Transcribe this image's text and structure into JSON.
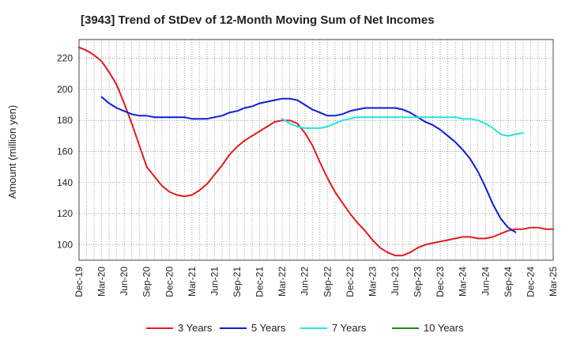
{
  "chart_data": {
    "type": "line",
    "title": "[3943]  Trend of StDev of 12-Month Moving Sum of Net Incomes",
    "xlabel": "",
    "ylabel": "Amount (million yen)",
    "ylim": [
      90,
      232
    ],
    "yticks": [
      100,
      120,
      140,
      160,
      180,
      200,
      220
    ],
    "grid": true,
    "legend_position": "bottom",
    "x_tick_labels": [
      "Dec-19",
      "Mar-20",
      "Jun-20",
      "Sep-20",
      "Dec-20",
      "Mar-21",
      "Jun-21",
      "Sep-21",
      "Dec-21",
      "Mar-22",
      "Jun-22",
      "Sep-22",
      "Dec-22",
      "Mar-23",
      "Jun-23",
      "Sep-23",
      "Dec-23",
      "Mar-24",
      "Jun-24",
      "Sep-24",
      "Dec-24",
      "Mar-25"
    ],
    "series": [
      {
        "name": "3 Years",
        "color": "#e31a1c",
        "start_index": 0,
        "values": [
          227,
          225,
          222,
          218,
          211,
          203,
          191,
          178,
          164,
          150,
          144,
          138,
          134,
          132,
          131,
          132,
          135,
          139,
          145,
          151,
          158,
          163,
          167,
          170,
          173,
          176,
          179,
          180,
          180,
          178,
          172,
          164,
          153,
          143,
          134,
          127,
          120,
          114,
          109,
          103,
          98,
          95,
          93,
          93,
          95,
          98,
          100,
          101,
          102,
          103,
          104,
          105,
          105,
          104,
          104,
          105,
          107,
          109,
          110,
          110,
          111,
          111,
          110,
          110
        ]
      },
      {
        "name": "5 Years",
        "color": "#0a1fd6",
        "start_index": 3,
        "values": [
          195,
          191,
          188,
          186,
          184,
          183,
          183,
          182,
          182,
          182,
          182,
          182,
          181,
          181,
          181,
          182,
          183,
          185,
          186,
          188,
          189,
          191,
          192,
          193,
          194,
          194,
          193,
          190,
          187,
          185,
          183,
          183,
          184,
          186,
          187,
          188,
          188,
          188,
          188,
          188,
          187,
          185,
          182,
          179,
          177,
          174,
          170,
          166,
          161,
          155,
          147,
          137,
          126,
          117,
          111,
          108
        ]
      },
      {
        "name": "7 Years",
        "color": "#22e5e5",
        "start_index": 27,
        "values": [
          181,
          178,
          176,
          175,
          175,
          175,
          176,
          178,
          180,
          181,
          182,
          182,
          182,
          182,
          182,
          182,
          182,
          182,
          182,
          182,
          182,
          182,
          182,
          182,
          181,
          181,
          180,
          178,
          175,
          171,
          170,
          171,
          172
        ]
      },
      {
        "name": "10 Years",
        "color": "#1a8a1a",
        "start_index": 0,
        "values": []
      }
    ]
  }
}
